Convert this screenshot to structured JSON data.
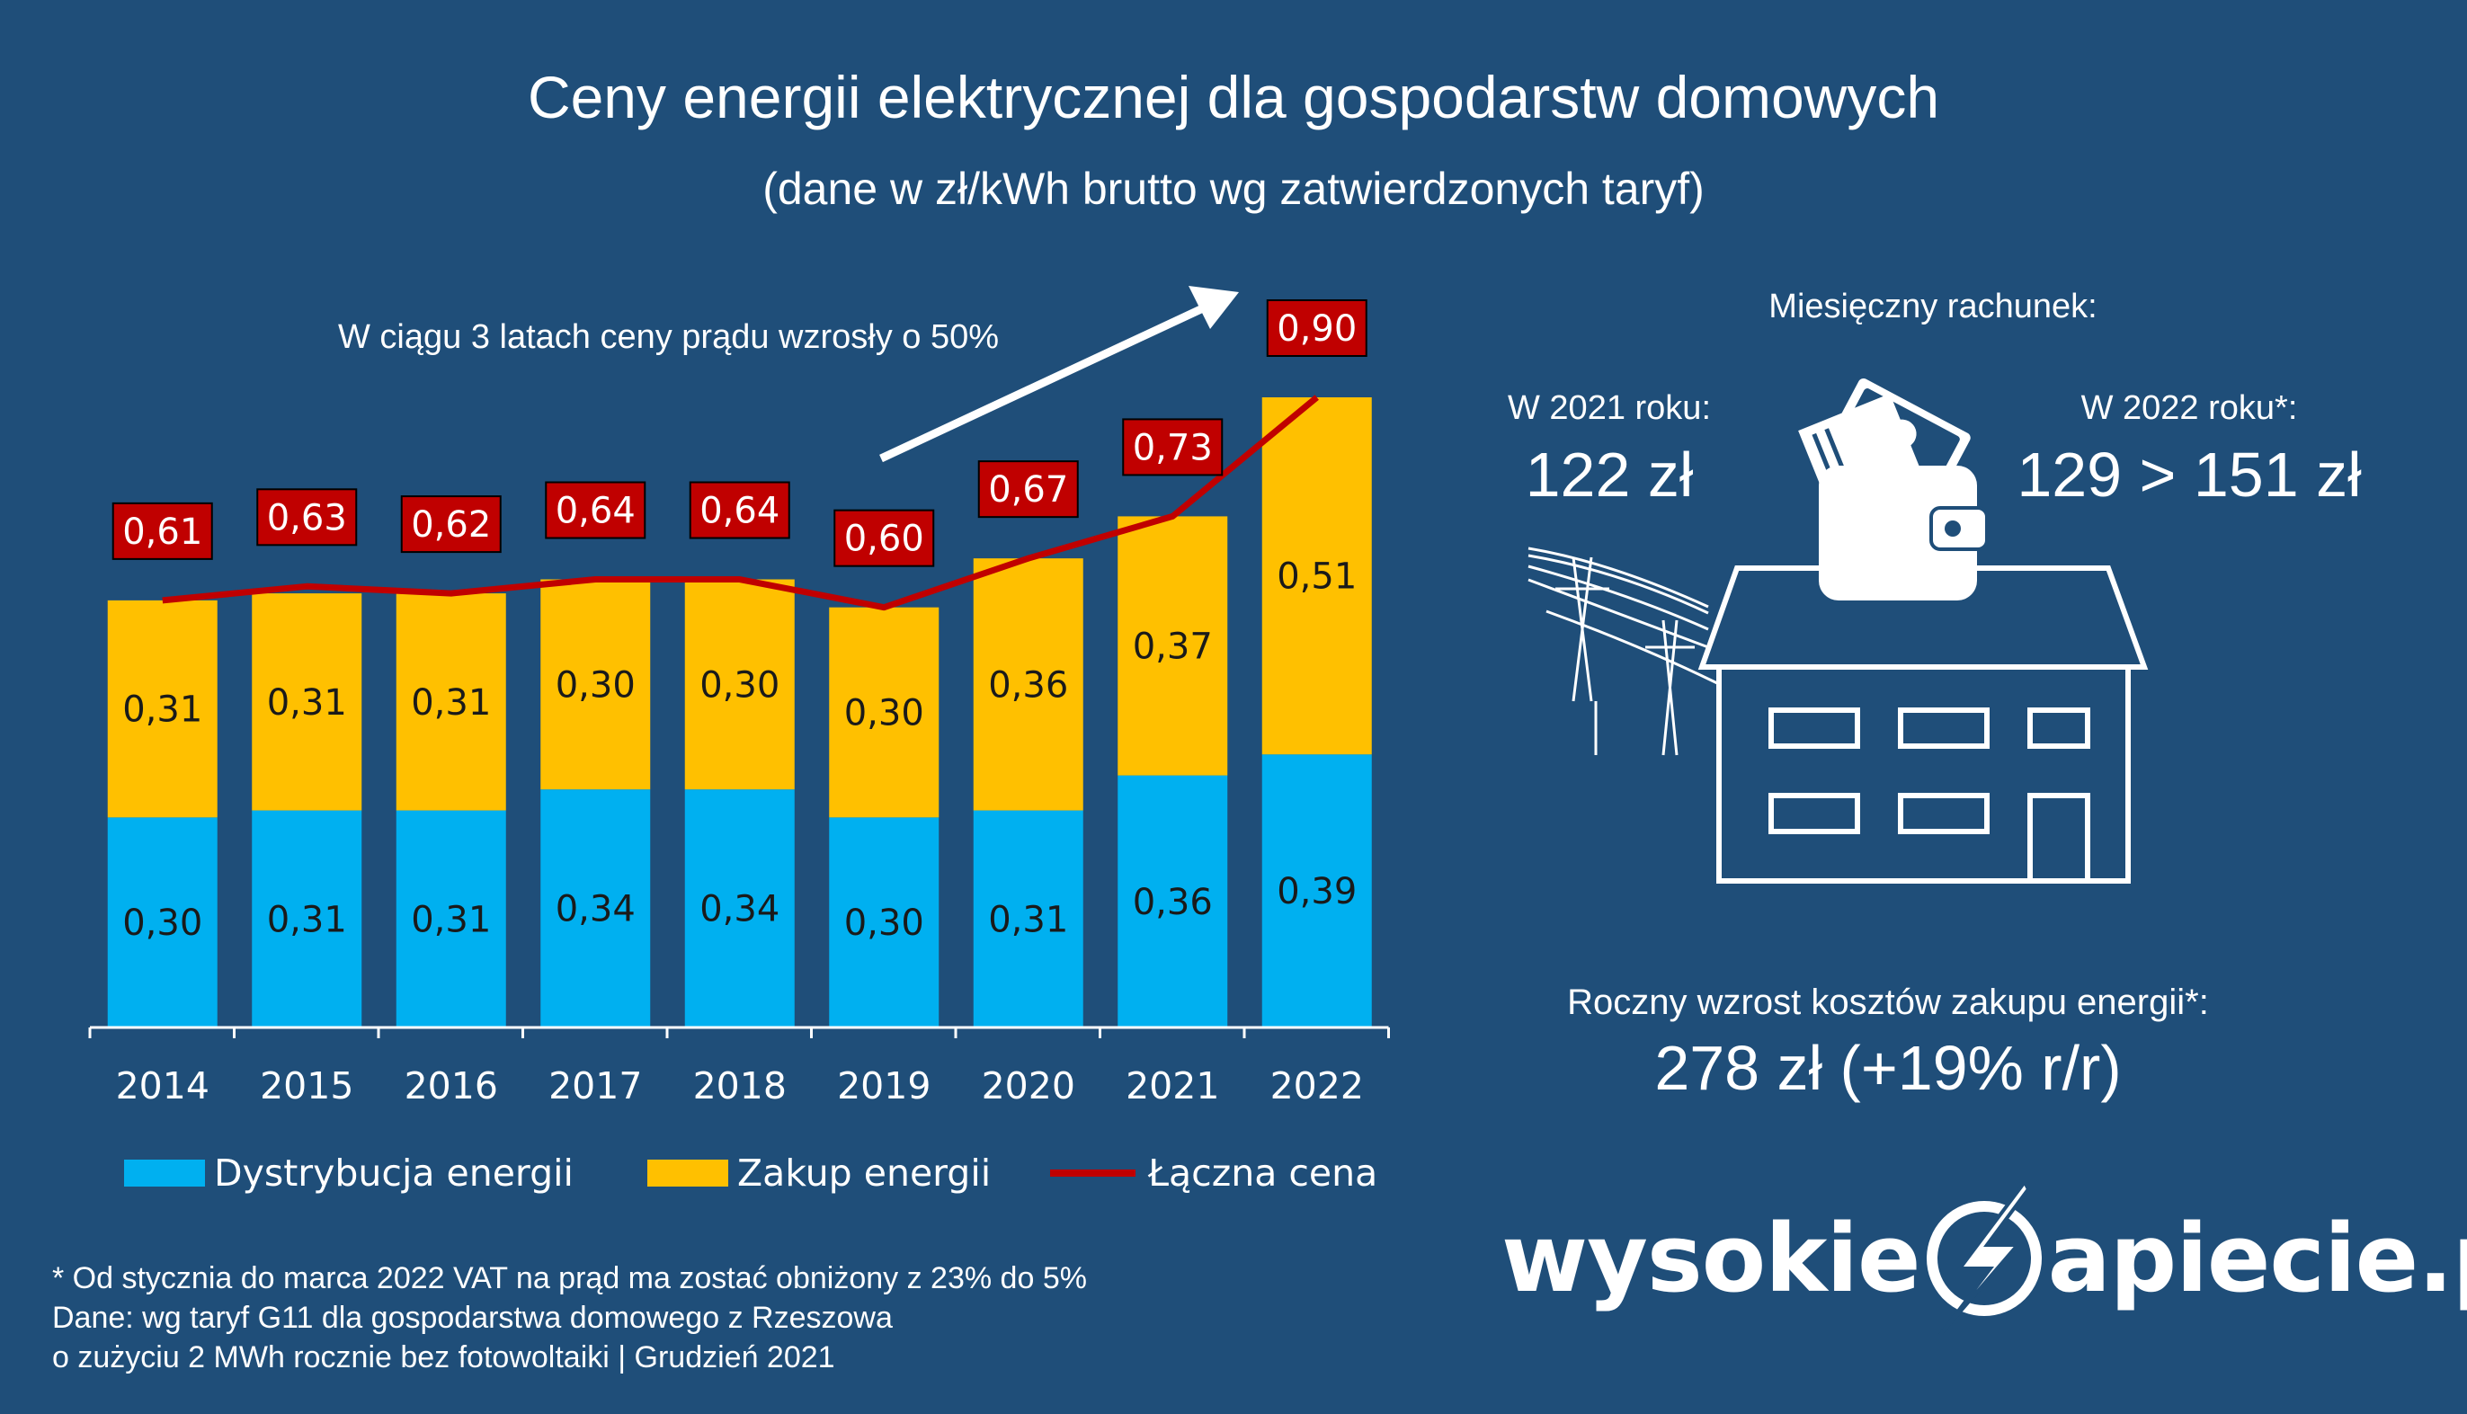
{
  "title": "Ceny energii elektrycznej dla gospodarstw domowych",
  "subtitle": "(dane w zł/kWh brutto wg zatwierdzonych taryf)",
  "annotation": "W ciągu 3 latach ceny prądu wzrosły o 50%",
  "colors": {
    "background": "#1f4e79",
    "distribution": "#00b0f0",
    "purchase": "#ffc000",
    "total_line": "#c00000"
  },
  "chart_data": {
    "type": "bar",
    "stacked": true,
    "categories": [
      "2014",
      "2015",
      "2016",
      "2017",
      "2018",
      "2019",
      "2020",
      "2021",
      "2022"
    ],
    "series": [
      {
        "name": "Dystrybucja energii",
        "values": [
          0.3,
          0.31,
          0.31,
          0.34,
          0.34,
          0.3,
          0.31,
          0.36,
          0.39
        ],
        "labels": [
          "0,30",
          "0,31",
          "0,31",
          "0,34",
          "0,34",
          "0,30",
          "0,31",
          "0,36",
          "0,39"
        ]
      },
      {
        "name": "Zakup energii",
        "values": [
          0.31,
          0.31,
          0.31,
          0.3,
          0.3,
          0.3,
          0.36,
          0.37,
          0.51
        ],
        "labels": [
          "0,31",
          "0,31",
          "0,31",
          "0,30",
          "0,30",
          "0,30",
          "0,36",
          "0,37",
          "0,51"
        ]
      }
    ],
    "line": {
      "name": "Łączna cena",
      "values": [
        0.61,
        0.63,
        0.62,
        0.64,
        0.64,
        0.6,
        0.67,
        0.73,
        0.9
      ],
      "labels": [
        "0,61",
        "0,63",
        "0,62",
        "0,64",
        "0,64",
        "0,60",
        "0,67",
        "0,73",
        "0,90"
      ]
    },
    "ylim": [
      0,
      0.9
    ],
    "legend_position": "bottom",
    "grid": false
  },
  "bill": {
    "heading": "Miesięczny rachunek:",
    "y2021_label": "W 2021 roku:",
    "y2021_value": "122 zł",
    "y2022_label": "W 2022 roku*:",
    "y2022_value": "129 > 151 zł"
  },
  "annual": {
    "label": "Roczny wzrost kosztów zakupu energii*:",
    "value": "278 zł (+19% r/r)"
  },
  "footnotes": [
    "* Od stycznia do marca 2022 VAT na prąd ma zostać obniżony z 23% do 5%",
    "Dane: wg taryf G11 dla gospodarstwa domowego z Rzeszowa",
    "o zużyciu 2 MWh rocznie bez fotowoltaiki  | Grudzień 2021"
  ],
  "brand": {
    "left": "wysokie",
    "right": "apiecie.pl"
  },
  "icons": [
    "wallet-icon",
    "house-icon",
    "power-line-icon",
    "lightning-logo-icon",
    "arrow-icon"
  ]
}
